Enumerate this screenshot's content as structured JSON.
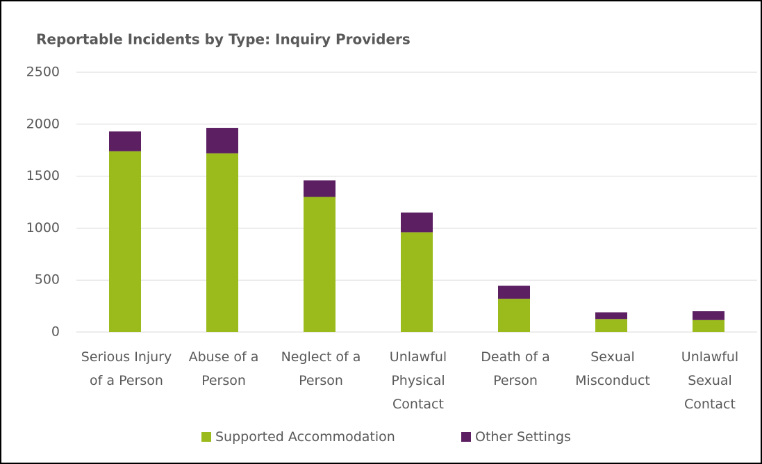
{
  "chart_data": {
    "type": "stacked_bar",
    "title": "Reportable Incidents by Type: Inquiry Providers",
    "categories": [
      "Serious Injury of a Person",
      "Abuse of a Person",
      "Neglect of a Person",
      "Unlawful Physical Contact",
      "Death of a Person",
      "Sexual Misconduct",
      "Unlawful Sexual Contact"
    ],
    "series": [
      {
        "name": "Supported Accommodation",
        "color": "#9bbb1c",
        "values": [
          1740,
          1720,
          1300,
          960,
          320,
          125,
          115
        ]
      },
      {
        "name": "Other Settings",
        "color": "#5c2062",
        "values": [
          190,
          245,
          160,
          190,
          125,
          65,
          85
        ]
      }
    ],
    "ylim": [
      0,
      2500
    ],
    "yticks": [
      0,
      500,
      1000,
      1500,
      2000,
      2500
    ],
    "grid": true,
    "legend": "bottom"
  }
}
